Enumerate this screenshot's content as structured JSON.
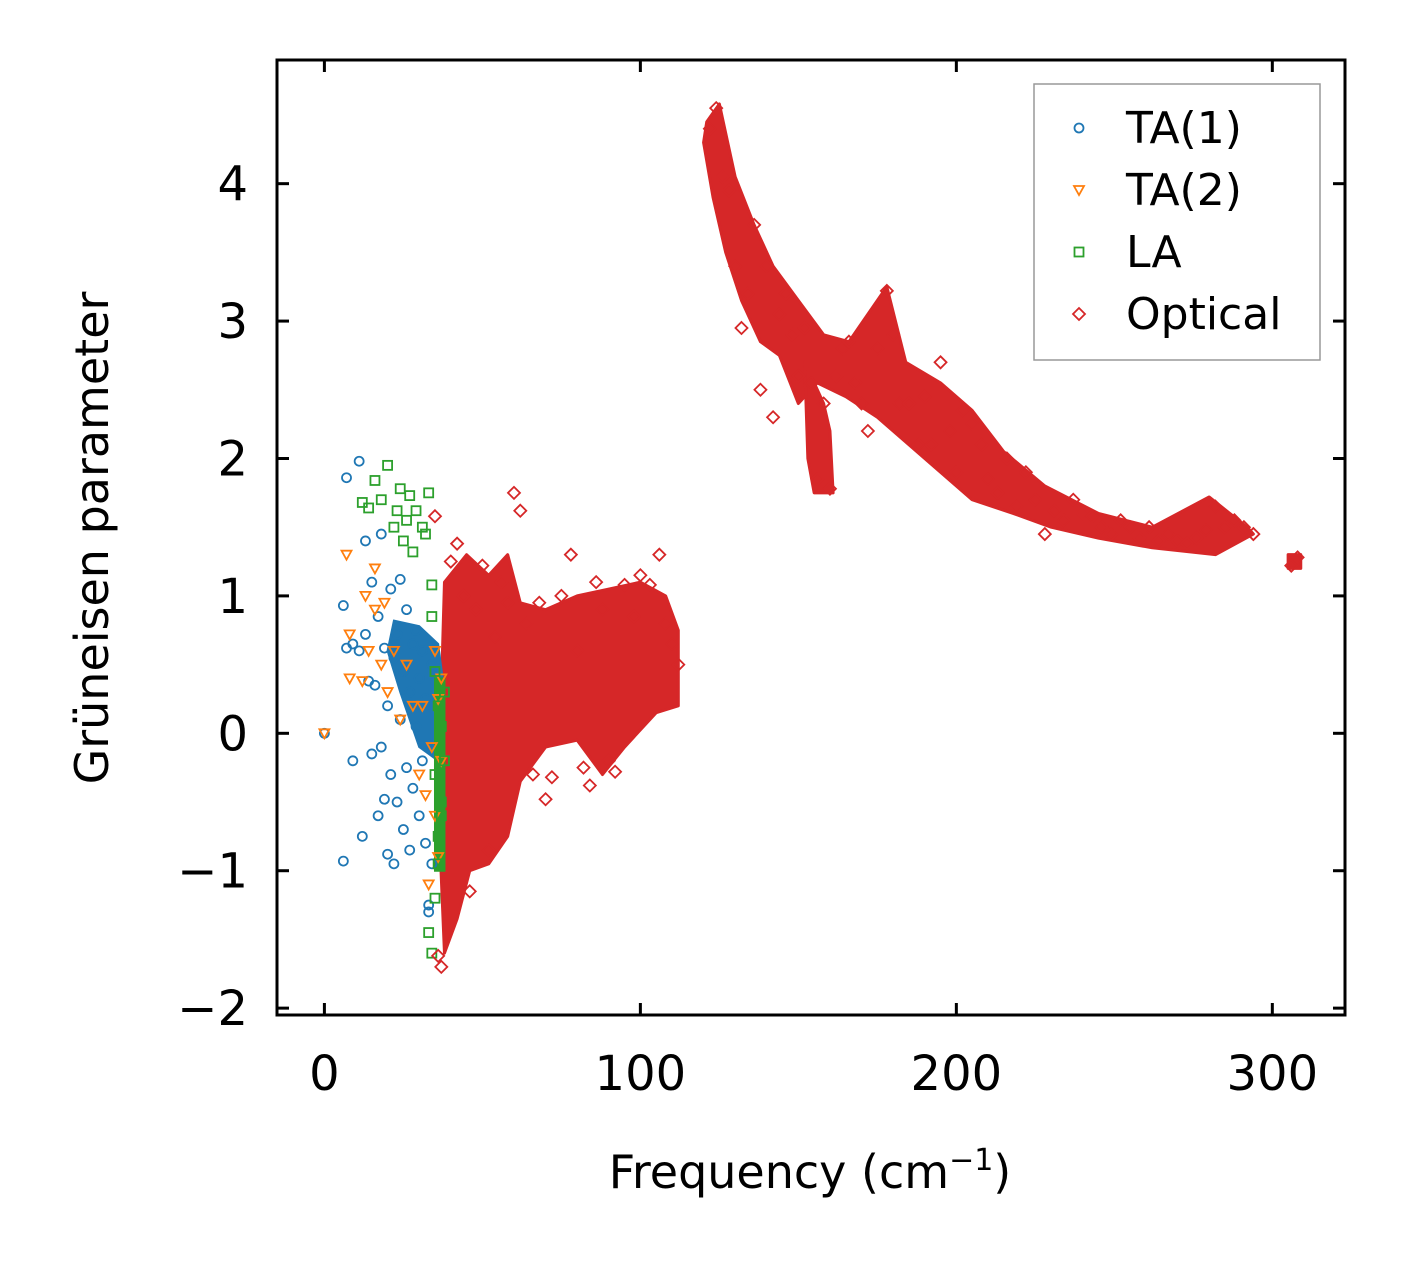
{
  "chart_data": {
    "type": "scatter",
    "xlabel": "Frequency (cm",
    "xlabel_sup": "−1",
    "xlabel_end": ")",
    "ylabel": "Grüneisen parameter",
    "xlim": [
      -15,
      323
    ],
    "ylim": [
      -2.05,
      4.9
    ],
    "xticks": [
      0,
      100,
      200,
      300
    ],
    "xtick_labels": [
      "0",
      "100",
      "200",
      "300"
    ],
    "yticks": [
      -2,
      -1,
      0,
      1,
      2,
      3,
      4
    ],
    "ytick_labels": [
      "−2",
      "−1",
      "0",
      "1",
      "2",
      "3",
      "4"
    ],
    "legend_position": "top-right",
    "series": [
      {
        "name": "TA(1)",
        "marker": "circle",
        "color": "#1f77b4",
        "points": [
          [
            0,
            0
          ],
          [
            6,
            -0.93
          ],
          [
            7,
            1.86
          ],
          [
            6,
            0.93
          ],
          [
            7,
            0.62
          ],
          [
            9,
            -0.2
          ],
          [
            9,
            0.65
          ],
          [
            11,
            1.98
          ],
          [
            11,
            0.6
          ],
          [
            12,
            -0.75
          ],
          [
            13,
            1.4
          ],
          [
            13,
            0.72
          ],
          [
            14,
            0.38
          ],
          [
            15,
            -0.15
          ],
          [
            15,
            1.1
          ],
          [
            16,
            0.35
          ],
          [
            17,
            -0.6
          ],
          [
            17,
            0.85
          ],
          [
            18,
            1.45
          ],
          [
            18,
            -0.1
          ],
          [
            19,
            -0.48
          ],
          [
            19,
            0.62
          ],
          [
            20,
            -0.88
          ],
          [
            20,
            0.2
          ],
          [
            21,
            1.05
          ],
          [
            21,
            -0.3
          ],
          [
            22,
            0.55
          ],
          [
            22,
            -0.95
          ],
          [
            23,
            0.72
          ],
          [
            23,
            -0.5
          ],
          [
            24,
            1.12
          ],
          [
            24,
            0.1
          ],
          [
            25,
            -0.7
          ],
          [
            25,
            0.45
          ],
          [
            26,
            0.9
          ],
          [
            26,
            -0.25
          ],
          [
            27,
            -0.85
          ],
          [
            27,
            0.3
          ],
          [
            28,
            0.65
          ],
          [
            28,
            -0.4
          ],
          [
            29,
            0.05
          ],
          [
            29,
            0.75
          ],
          [
            30,
            -0.6
          ],
          [
            30,
            0.4
          ],
          [
            31,
            -0.2
          ],
          [
            31,
            0.6
          ],
          [
            32,
            -0.8
          ],
          [
            32,
            0.25
          ],
          [
            33,
            -1.25
          ],
          [
            33,
            -1.3
          ],
          [
            34,
            0.5
          ],
          [
            34,
            -0.95
          ]
        ]
      },
      {
        "name": "TA(2)",
        "marker": "triangle-down",
        "color": "#ff7f0e",
        "points": [
          [
            0,
            0
          ],
          [
            7,
            1.3
          ],
          [
            8,
            0.72
          ],
          [
            8,
            0.4
          ],
          [
            12,
            0.38
          ],
          [
            13,
            1.0
          ],
          [
            14,
            0.6
          ],
          [
            16,
            1.2
          ],
          [
            16,
            0.9
          ],
          [
            18,
            0.5
          ],
          [
            19,
            0.95
          ],
          [
            20,
            0.3
          ],
          [
            22,
            0.6
          ],
          [
            24,
            0.1
          ],
          [
            26,
            0.5
          ],
          [
            28,
            0.2
          ],
          [
            30,
            -0.3
          ],
          [
            31,
            0.2
          ],
          [
            32,
            -0.45
          ],
          [
            33,
            -1.1
          ],
          [
            34,
            -0.1
          ],
          [
            35,
            0.6
          ],
          [
            35,
            -0.6
          ],
          [
            36,
            0.25
          ],
          [
            36,
            -0.9
          ],
          [
            37,
            -0.2
          ],
          [
            37,
            0.4
          ]
        ]
      },
      {
        "name": "LA",
        "marker": "square",
        "color": "#2ca02c",
        "points": [
          [
            12,
            1.68
          ],
          [
            14,
            1.64
          ],
          [
            16,
            1.84
          ],
          [
            18,
            1.7
          ],
          [
            20,
            1.95
          ],
          [
            22,
            1.5
          ],
          [
            23,
            1.62
          ],
          [
            24,
            1.78
          ],
          [
            25,
            1.4
          ],
          [
            26,
            1.55
          ],
          [
            27,
            1.73
          ],
          [
            28,
            1.32
          ],
          [
            29,
            1.62
          ],
          [
            31,
            1.5
          ],
          [
            32,
            1.45
          ],
          [
            33,
            1.75
          ],
          [
            34,
            1.08
          ],
          [
            34,
            0.85
          ],
          [
            35,
            0.45
          ],
          [
            35,
            -0.3
          ],
          [
            36,
            0.2
          ],
          [
            36,
            -0.75
          ],
          [
            37,
            -0.5
          ],
          [
            37,
            0.05
          ],
          [
            38,
            -0.2
          ],
          [
            38,
            0.3
          ],
          [
            33,
            -1.45
          ],
          [
            34,
            -1.6
          ],
          [
            35,
            -1.2
          ],
          [
            36,
            -0.95
          ],
          [
            37,
            -0.6
          ]
        ]
      },
      {
        "name": "Optical",
        "marker": "diamond",
        "color": "#d62728",
        "points": [
          [
            35,
            1.58
          ],
          [
            36,
            -1.62
          ],
          [
            37,
            -1.7
          ],
          [
            40,
            1.25
          ],
          [
            42,
            1.38
          ],
          [
            44,
            1.0
          ],
          [
            46,
            -1.15
          ],
          [
            48,
            0.9
          ],
          [
            50,
            1.22
          ],
          [
            52,
            -0.85
          ],
          [
            54,
            0.7
          ],
          [
            56,
            1.1
          ],
          [
            58,
            0.95
          ],
          [
            60,
            1.75
          ],
          [
            62,
            1.62
          ],
          [
            64,
            0.8
          ],
          [
            66,
            -0.3
          ],
          [
            68,
            0.95
          ],
          [
            70,
            -0.48
          ],
          [
            72,
            -0.32
          ],
          [
            75,
            1.0
          ],
          [
            78,
            1.3
          ],
          [
            80,
            0.6
          ],
          [
            82,
            -0.25
          ],
          [
            84,
            -0.38
          ],
          [
            86,
            1.1
          ],
          [
            88,
            0.9
          ],
          [
            90,
            -0.2
          ],
          [
            92,
            -0.28
          ],
          [
            95,
            1.08
          ],
          [
            98,
            0.85
          ],
          [
            100,
            1.15
          ],
          [
            103,
            1.08
          ],
          [
            106,
            1.3
          ],
          [
            108,
            0.8
          ],
          [
            110,
            0.65
          ],
          [
            112,
            0.5
          ],
          [
            122,
            4.4
          ],
          [
            124,
            4.55
          ],
          [
            126,
            4.05
          ],
          [
            128,
            3.95
          ],
          [
            130,
            3.4
          ],
          [
            132,
            2.95
          ],
          [
            134,
            3.2
          ],
          [
            136,
            3.7
          ],
          [
            138,
            2.5
          ],
          [
            140,
            3.4
          ],
          [
            142,
            2.3
          ],
          [
            144,
            3.05
          ],
          [
            146,
            3.2
          ],
          [
            148,
            2.9
          ],
          [
            150,
            2.6
          ],
          [
            152,
            2.95
          ],
          [
            154,
            2.55
          ],
          [
            156,
            1.85
          ],
          [
            158,
            2.4
          ],
          [
            160,
            1.78
          ],
          [
            162,
            2.6
          ],
          [
            164,
            2.8
          ],
          [
            166,
            2.85
          ],
          [
            168,
            2.55
          ],
          [
            170,
            2.4
          ],
          [
            172,
            2.2
          ],
          [
            175,
            2.8
          ],
          [
            178,
            3.22
          ],
          [
            180,
            2.9
          ],
          [
            182,
            2.4
          ],
          [
            185,
            2.4
          ],
          [
            188,
            2.1
          ],
          [
            190,
            2.45
          ],
          [
            192,
            2.1
          ],
          [
            195,
            2.7
          ],
          [
            198,
            2.2
          ],
          [
            200,
            1.9
          ],
          [
            202,
            2.35
          ],
          [
            205,
            2.25
          ],
          [
            208,
            2.1
          ],
          [
            210,
            1.85
          ],
          [
            213,
            1.75
          ],
          [
            216,
            2.0
          ],
          [
            219,
            1.65
          ],
          [
            222,
            1.9
          ],
          [
            225,
            1.7
          ],
          [
            228,
            1.45
          ],
          [
            231,
            1.62
          ],
          [
            234,
            1.55
          ],
          [
            237,
            1.7
          ],
          [
            240,
            1.6
          ],
          [
            243,
            1.58
          ],
          [
            246,
            1.5
          ],
          [
            249,
            1.45
          ],
          [
            252,
            1.55
          ],
          [
            255,
            1.5
          ],
          [
            258,
            1.42
          ],
          [
            261,
            1.5
          ],
          [
            264,
            1.4
          ],
          [
            267,
            1.45
          ],
          [
            270,
            1.4
          ],
          [
            273,
            1.38
          ],
          [
            276,
            1.42
          ],
          [
            279,
            1.48
          ],
          [
            282,
            1.65
          ],
          [
            285,
            1.5
          ],
          [
            288,
            1.55
          ],
          [
            291,
            1.5
          ],
          [
            294,
            1.45
          ],
          [
            306,
            1.22
          ],
          [
            308,
            1.28
          ]
        ]
      }
    ]
  }
}
